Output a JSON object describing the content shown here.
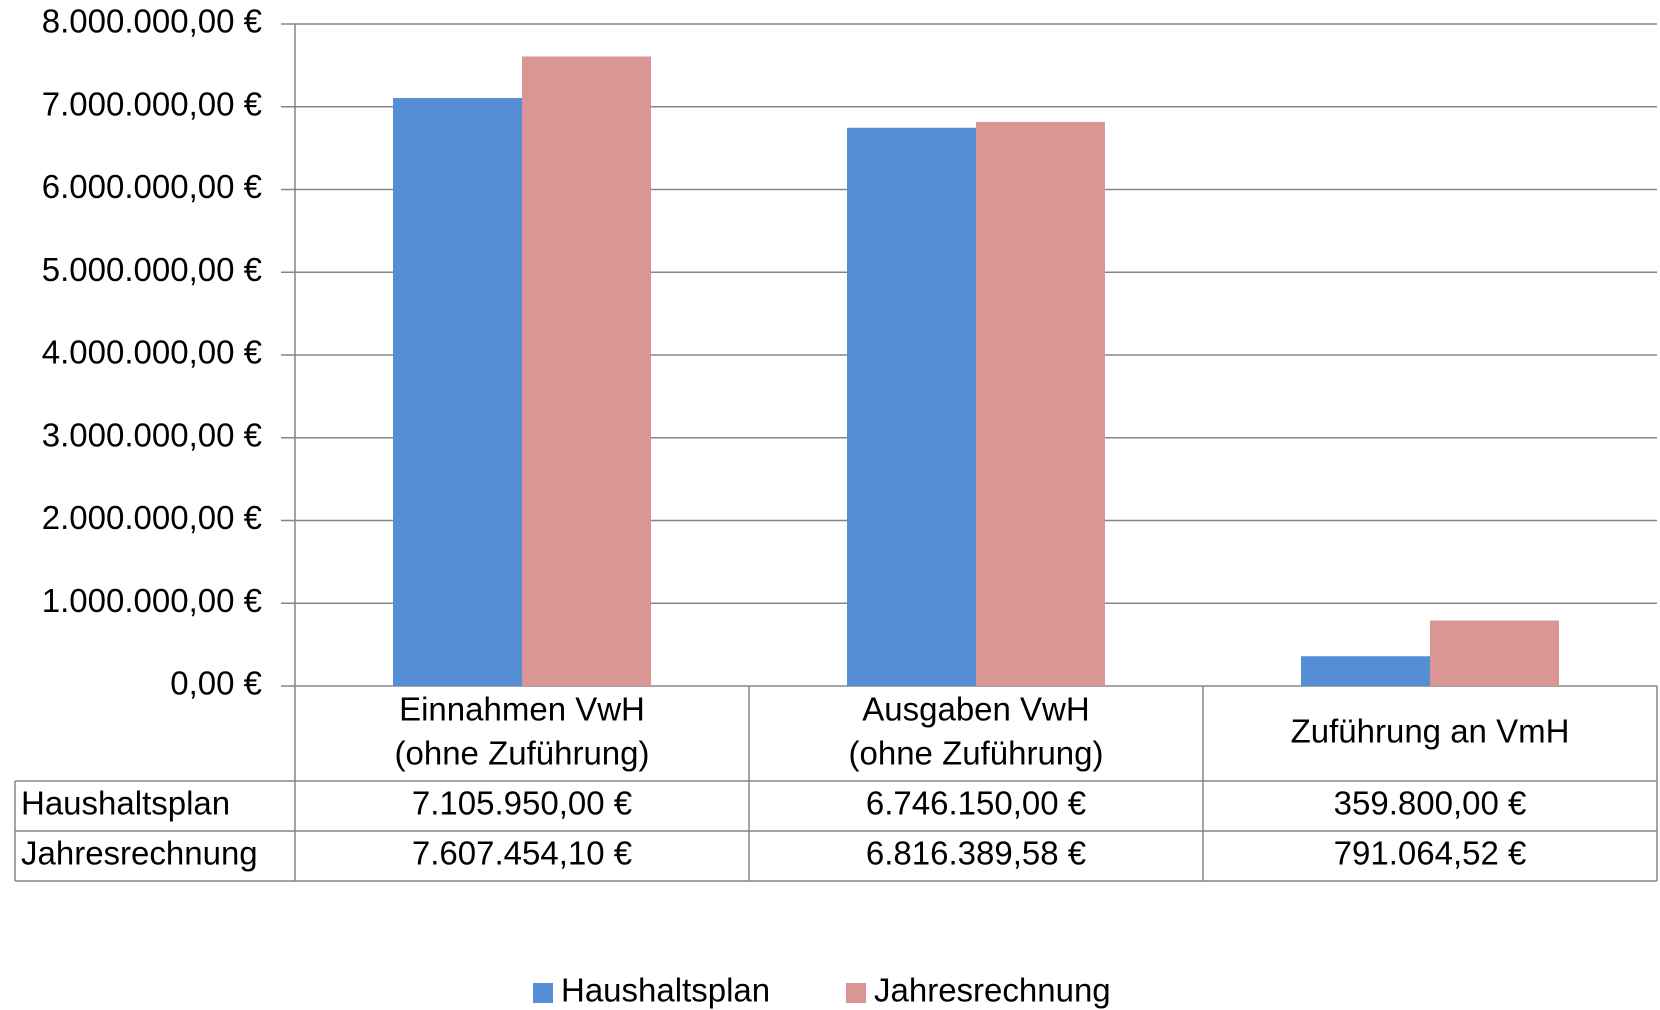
{
  "chart_data": {
    "type": "bar",
    "categories": [
      "Einnahmen VwH\n(ohne Zuführung)",
      "Ausgaben VwH\n(ohne Zuführung)",
      "Zuführung an VmH"
    ],
    "series": [
      {
        "name": "Haushaltsplan",
        "color": "#558ed5",
        "values": [
          7105950.0,
          6746150.0,
          359800.0
        ],
        "value_labels": [
          "7.105.950,00 €",
          "6.746.150,00 €",
          "359.800,00 €"
        ]
      },
      {
        "name": "Jahresrechnung",
        "color": "#d99694",
        "values": [
          7607454.1,
          6816389.58,
          791064.52
        ],
        "value_labels": [
          "7.607.454,10 €",
          "6.816.389,58 €",
          "791.064,52 €"
        ]
      }
    ],
    "ylim": [
      0,
      8000000
    ],
    "yticks": [
      {
        "value": 0,
        "label": "0,00 €"
      },
      {
        "value": 1000000,
        "label": "1.000.000,00 €"
      },
      {
        "value": 2000000,
        "label": "2.000.000,00 €"
      },
      {
        "value": 3000000,
        "label": "3.000.000,00 €"
      },
      {
        "value": 4000000,
        "label": "4.000.000,00 €"
      },
      {
        "value": 5000000,
        "label": "5.000.000,00 €"
      },
      {
        "value": 6000000,
        "label": "6.000.000,00 €"
      },
      {
        "value": 7000000,
        "label": "7.000.000,00 €"
      },
      {
        "value": 8000000,
        "label": "8.000.000,00 €"
      }
    ],
    "grid": true,
    "legend": "bottom",
    "data_table": true
  }
}
